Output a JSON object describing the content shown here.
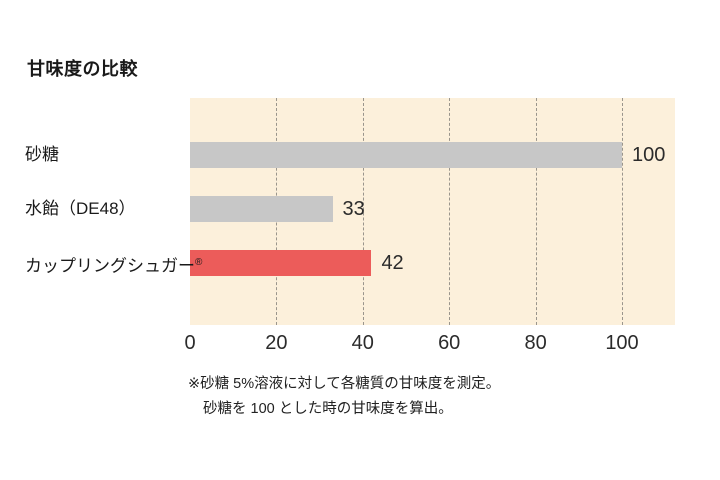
{
  "title": "甘味度の比較",
  "footnote": {
    "line1": "※砂糖 5%溶液に対して各糖質の甘味度を測定。",
    "line2": "砂糖を 100 とした時の甘味度を算出。"
  },
  "colors": {
    "plot_background": "#fcf0db",
    "gray_bar": "#c7c7c7",
    "red_bar": "#ec5c5a",
    "gridline": "#9a958c",
    "text": "#1a1a1a"
  },
  "chart_data": {
    "type": "bar",
    "orientation": "horizontal",
    "title": "甘味度の比較",
    "categories": [
      "砂糖",
      "水飴（DE48）",
      "カップリングシュガー®"
    ],
    "values": [
      100,
      33,
      42
    ],
    "bar_colors": [
      "#c7c7c7",
      "#c7c7c7",
      "#ec5c5a"
    ],
    "data_labels": [
      "100",
      "33",
      "42"
    ],
    "xticks": [
      0,
      20,
      40,
      60,
      80,
      100
    ],
    "xlim": [
      0,
      112
    ],
    "xlabel": "",
    "ylabel": "",
    "grid": "vertical-dashed",
    "legend": "none",
    "annotations": [
      "※砂糖 5%溶液に対して各糖質の甘味度を測定。",
      "砂糖を 100 とした時の甘味度を算出。"
    ]
  }
}
